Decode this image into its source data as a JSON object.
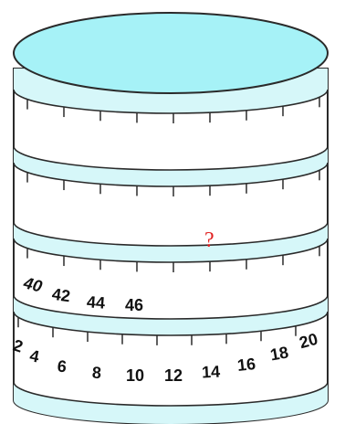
{
  "question_mark": "?",
  "bottom_scale_labels": [
    "2",
    "4",
    "6",
    "8",
    "10",
    "12",
    "14",
    "16",
    "18",
    "20"
  ],
  "third_scale_labels": [
    "40",
    "42",
    "44",
    "46"
  ],
  "colors": {
    "top_face": "#a6f2f7",
    "band": "#d6f7f9",
    "outline": "#2a2a2a",
    "question": "#e02020"
  }
}
